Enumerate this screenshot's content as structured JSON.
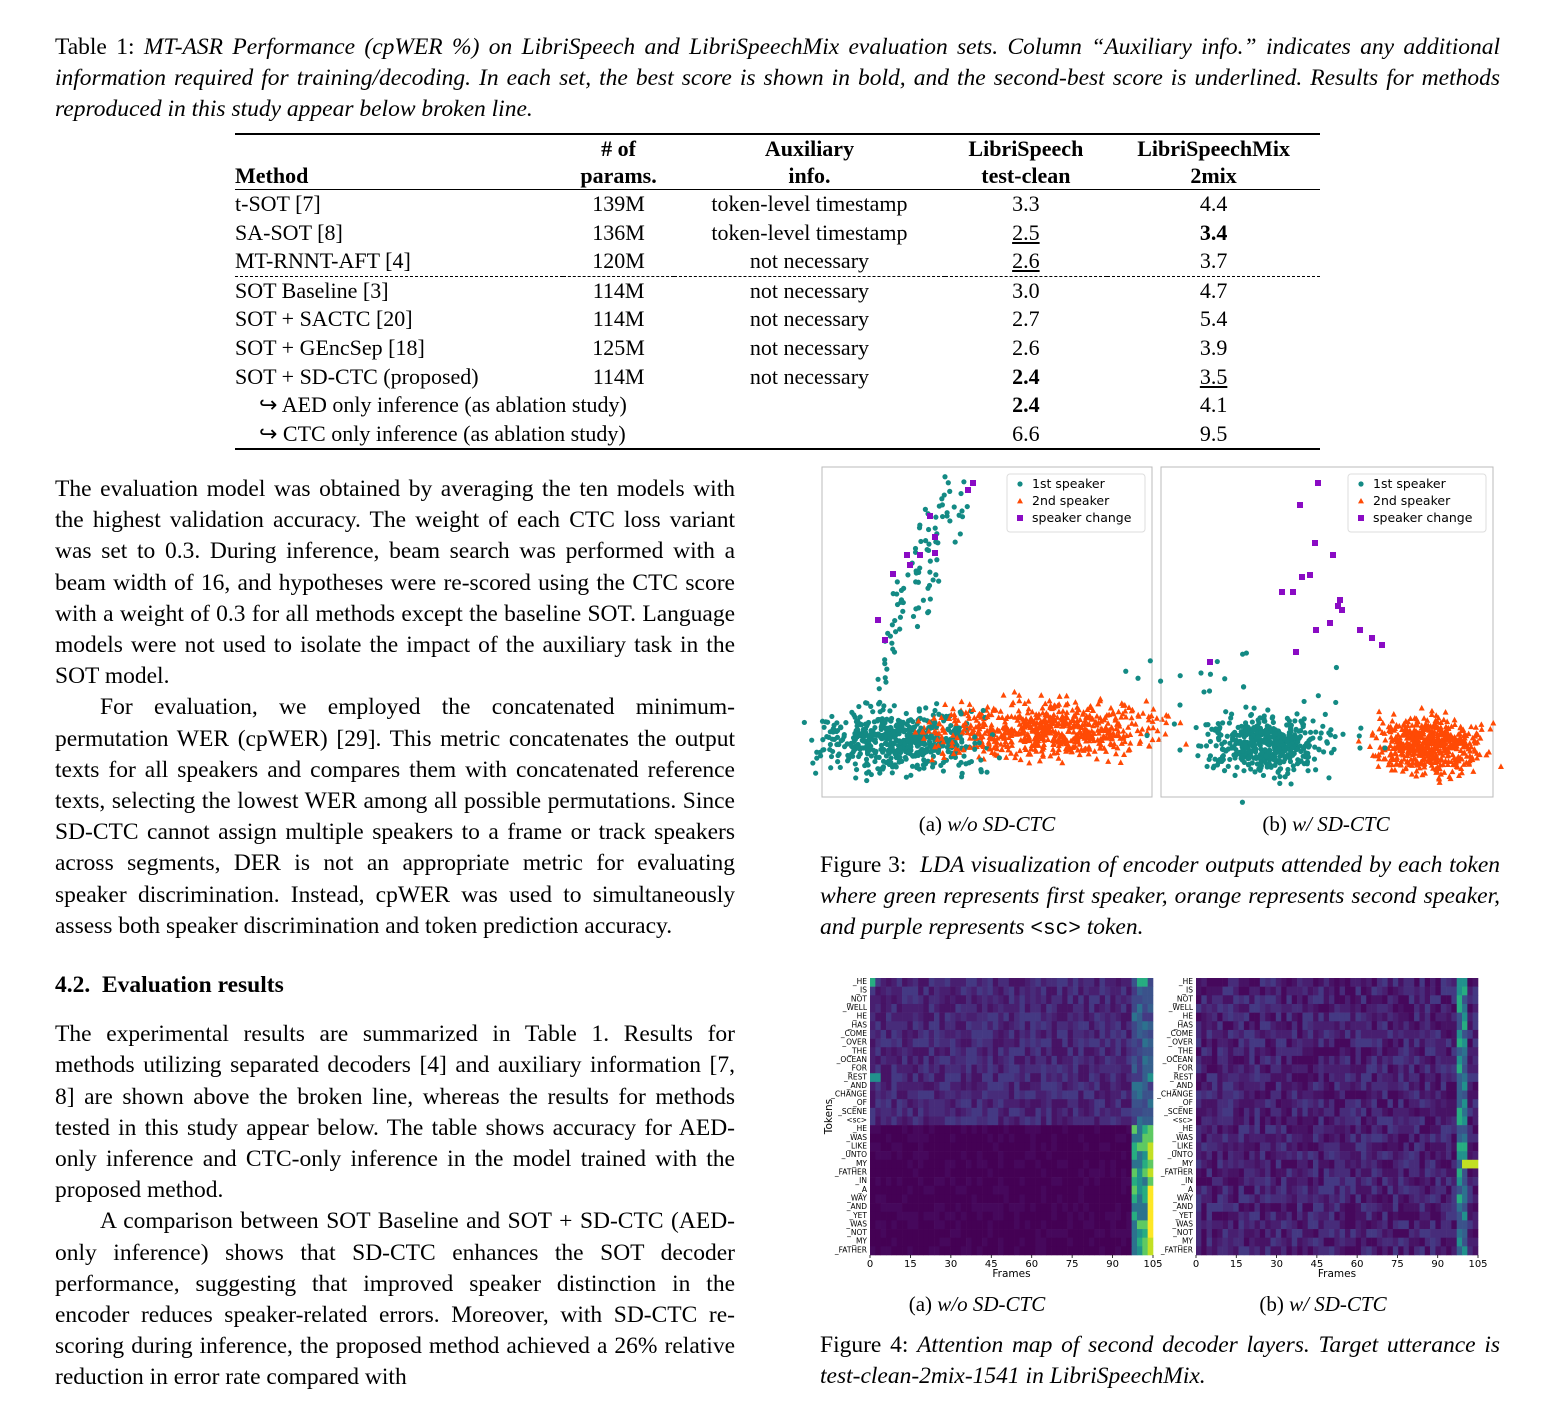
{
  "table": {
    "label": "Table 1:",
    "caption": "MT-ASR Performance (cpWER %) on LibriSpeech and LibriSpeechMix evaluation sets. Column “Auxiliary info.” indicates any additional information required for training/decoding. In each set, the best score is shown in bold, and the second-best score is underlined. Results for methods reproduced in this study appear below broken line.",
    "header": [
      [
        "Method"
      ],
      [
        "# of",
        "params."
      ],
      [
        "Auxiliary",
        "info."
      ],
      [
        "LibriSpeech",
        "test-clean"
      ],
      [
        "LibriSpeechMix",
        "2mix"
      ]
    ],
    "rows": [
      [
        "t-SOT [7]",
        "139M",
        "token-level timestamp",
        "3.3",
        "4.4"
      ],
      [
        "SA-SOT [8]",
        "136M",
        "token-level timestamp",
        "2.5",
        "3.4"
      ],
      [
        "MT-RNNT-AFT [4]",
        "120M",
        "not necessary",
        "2.6",
        "3.7"
      ],
      [
        "SOT Baseline [3]",
        "114M",
        "not necessary",
        "3.0",
        "4.7"
      ],
      [
        "SOT + SACTC [20]",
        "114M",
        "not necessary",
        "2.7",
        "5.4"
      ],
      [
        "SOT + GEncSep [18]",
        "125M",
        "not necessary",
        "2.6",
        "3.9"
      ],
      [
        "SOT + SD-CTC (proposed)",
        "114M",
        "not necessary",
        "2.4",
        "3.5"
      ],
      [
        "↪ AED only inference (as ablation study)",
        "2.4",
        "4.1"
      ],
      [
        "↪ CTC only inference (as ablation study)",
        "6.6",
        "9.5"
      ]
    ]
  },
  "body": {
    "paragraphs_1": [
      "The evaluation model was obtained by averaging the ten models with the highest validation accuracy. The weight of each CTC loss variant was set to 0.3. During inference, beam search was performed with a beam width of 16, and hypotheses were re-scored using the CTC score with a weight of 0.3 for all methods except the baseline SOT. Language models were not used to isolate the impact of the auxiliary task in the SOT model.",
      "For evaluation, we employed the concatenated minimum-permutation WER (cpWER) [29]. This metric concatenates the output texts for all speakers and compares them with concatenated reference texts, selecting the lowest WER among all possible permutations. Since SD-CTC cannot assign multiple speakers to a frame or track speakers across segments, DER is not an appropriate metric for evaluating speaker discrimination. Instead, cpWER was used to simultaneously assess both speaker discrimination and token prediction accuracy."
    ],
    "section": {
      "number": "4.2.",
      "title": "Evaluation results"
    },
    "paragraphs_2": [
      "The experimental results are summarized in Table 1. Results for methods utilizing separated decoders [4] and auxiliary information [7, 8] are shown above the broken line, whereas the results for methods tested in this study appear below. The table shows accuracy for AED-only inference and CTC-only inference in the model trained with the proposed method.",
      "A comparison between SOT Baseline and SOT + SD-CTC (AED-only inference) shows that SD-CTC enhances the SOT decoder performance, suggesting that improved speaker distinction in the encoder reduces speaker-related errors. Moreover, with SD-CTC re-scoring during inference, the proposed method achieved a 26% relative reduction in error rate compared with"
    ]
  },
  "figure3": {
    "panels": [
      {
        "label": "(a)",
        "caption": "w/o SD-CTC",
        "legend": [
          "1st speaker",
          "2nd speaker",
          "speaker change"
        ]
      },
      {
        "label": "(b)",
        "caption": "w/ SD-CTC",
        "legend": [
          "1st speaker",
          "2nd speaker",
          "speaker change"
        ]
      }
    ],
    "label": "Figure 3:",
    "caption": "LDA visualization of encoder outputs attended by each token where green represents first speaker, orange represents second speaker, and purple represents",
    "code": "<sc>",
    "caption_end": "token."
  },
  "figure4": {
    "panels": [
      {
        "label": "(a)",
        "caption": "w/o SD-CTC",
        "ylabel": "Tokens",
        "xlabel": "Frames",
        "xticks": [
          0,
          15,
          30,
          45,
          60,
          75,
          90,
          105
        ],
        "tokens": [
          "_HE",
          "_IS",
          "_NOT",
          "_WELL",
          "_HE",
          "_HAS",
          "_COME",
          "_OVER",
          "_THE",
          "_OCEAN",
          "_FOR",
          "_REST",
          "_AND",
          "_CHANGE",
          "_OF",
          "_SCENE",
          "<sc>",
          "_HE",
          "_WAS",
          "_LIKE",
          "_UNTO",
          "_MY",
          "_FATHER",
          "_IN",
          "_A",
          "_WAY",
          "_AND",
          "_YET",
          "_WAS",
          "_NOT",
          "_MY",
          "_FATHER"
        ]
      },
      {
        "label": "(b)",
        "caption": "w/ SD-CTC",
        "xlabel": "Frames",
        "xticks": [
          0,
          15,
          30,
          45,
          60,
          75,
          90,
          105
        ],
        "tokens": [
          "_HE",
          "_IS",
          "_NOT",
          "_WELL",
          "_HE",
          "_HAS",
          "_COME",
          "_OVER",
          "_THE",
          "_OCEAN",
          "_FOR",
          "_REST",
          "_AND",
          "_CHANGE",
          "_OF",
          "_SCENE",
          "<sc>",
          "_HE",
          "_WAS",
          "_LIKE",
          "_UNTO",
          "_MY",
          "_FATHER",
          "_IN",
          "_A",
          "_WAY",
          "_AND",
          "_YET",
          "_WAS",
          "_NOT",
          "_MY",
          "_FATHER"
        ]
      }
    ],
    "label": "Figure 4:",
    "caption": "Attention map of second decoder layers. Target utterance is test-clean-2mix-1541 in LibriSpeechMix."
  }
}
